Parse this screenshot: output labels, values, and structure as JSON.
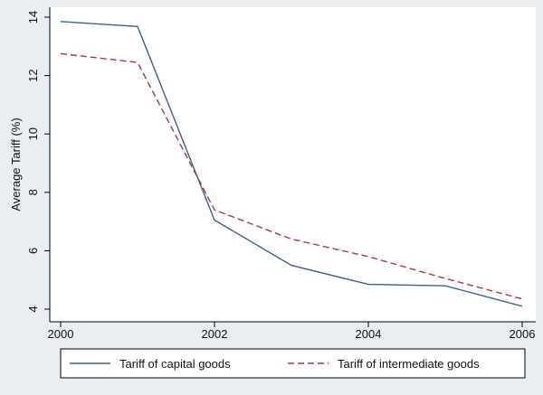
{
  "chart_data": {
    "type": "line",
    "title": "",
    "xlabel": "",
    "ylabel": "Average Tariff (%)",
    "x": [
      2000,
      2001,
      2002,
      2003,
      2004,
      2005,
      2006
    ],
    "xlim": [
      2000,
      2006
    ],
    "ylim": [
      4,
      14
    ],
    "xticks": [
      "2000",
      "2002",
      "2004",
      "2006"
    ],
    "yticks": [
      "4",
      "6",
      "8",
      "10",
      "12",
      "14"
    ],
    "grid": false,
    "legend_position": "bottom",
    "series": [
      {
        "name": "Tariff of capital goods",
        "values": [
          13.85,
          13.68,
          7.05,
          5.5,
          4.85,
          4.8,
          4.1
        ],
        "color": "#3d6287",
        "dash": "solid"
      },
      {
        "name": "Tariff of intermediate goods",
        "values": [
          12.75,
          12.45,
          7.4,
          6.4,
          5.8,
          5.05,
          4.35
        ],
        "color": "#9e3b45",
        "dash": "dashed"
      }
    ]
  }
}
